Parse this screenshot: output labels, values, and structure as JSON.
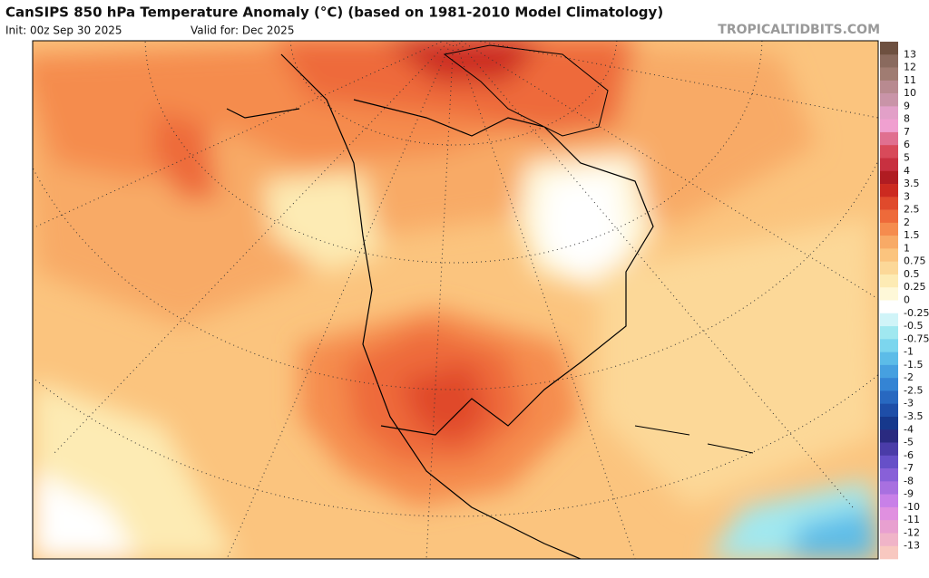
{
  "header": {
    "title": "CanSIPS 850 hPa Temperature Anomaly (°C) (based on 1981-2010 Model Climatology)",
    "init": "Init: 00z Sep 30 2025",
    "valid": "Valid for: Dec 2025",
    "site": "TROPICALTIDBITS.COM"
  },
  "colorbar": {
    "labels": [
      13,
      12,
      11,
      10,
      9,
      8,
      7,
      6,
      5,
      4,
      3.5,
      3,
      2.5,
      2,
      1.5,
      1,
      0.75,
      0.5,
      0.25,
      0,
      -0.25,
      -0.5,
      -0.75,
      -1,
      -1.5,
      -2,
      -2.5,
      -3,
      -3.5,
      -4,
      -5,
      -6,
      -7,
      -8,
      -9,
      -10,
      -11,
      -12,
      -13
    ],
    "colors": [
      "#6e5040",
      "#8a6a5e",
      "#a07c72",
      "#b88a90",
      "#c994a8",
      "#e2a0c8",
      "#f0a0d0",
      "#e07090",
      "#d84a5a",
      "#c83040",
      "#b01c22",
      "#cc2a20",
      "#e04a2c",
      "#ee6a3a",
      "#f58c4e",
      "#f8aa66",
      "#fbc47e",
      "#fcd898",
      "#fdebb4",
      "#fef8d8",
      "#ffffff",
      "#d0f4f8",
      "#a0e8f0",
      "#7cd6ee",
      "#5cbce8",
      "#46a0e0",
      "#3484d4",
      "#2868c0",
      "#1e4ea8",
      "#16388c",
      "#2a2a80",
      "#4a3ca8",
      "#6650c8",
      "#8860d8",
      "#a870e0",
      "#c880e8",
      "#e090e0",
      "#e8a0d0",
      "#f0b4c8",
      "#f8c8c0"
    ]
  }
}
